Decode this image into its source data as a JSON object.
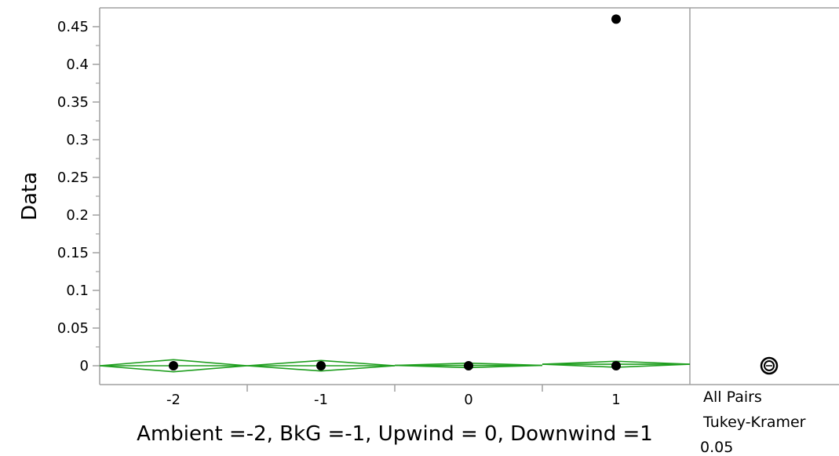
{
  "chart_data": {
    "type": "scatter",
    "title": "",
    "ylabel": "Data",
    "xlabel": "Ambient =-2, BkG =-1, Upwind = 0, Downwind =1",
    "ylim": [
      0,
      0.47
    ],
    "yticks": [
      0,
      0.05,
      0.1,
      0.15,
      0.2,
      0.25,
      0.3,
      0.35,
      0.4,
      0.45
    ],
    "ytick_labels": [
      "0",
      "0.05",
      "0.1",
      "0.15",
      "0.2",
      "0.25",
      "0.3",
      "0.35",
      "0.4",
      "0.45"
    ],
    "categories": [
      "-2",
      "-1",
      "0",
      "1"
    ],
    "points": [
      {
        "category": "-2",
        "y": 0
      },
      {
        "category": "-1",
        "y": 0
      },
      {
        "category": "0",
        "y": 0
      },
      {
        "category": "1",
        "y": 0
      },
      {
        "category": "1",
        "y": 0.46
      }
    ],
    "means_diamonds": [
      {
        "category": "-2",
        "mean": 0,
        "half_width": 0.008
      },
      {
        "category": "-1",
        "mean": 0,
        "half_width": 0.007
      },
      {
        "category": "0",
        "mean": 0.0005,
        "half_width": 0.003
      },
      {
        "category": "1",
        "mean": 0.002,
        "half_width": 0.004
      }
    ],
    "comparison_circles": {
      "labels": [
        "All Pairs",
        "Tukey-Kramer",
        "0.05"
      ],
      "center": 0
    },
    "colors": {
      "points": "#000000",
      "diamonds": "#1e9e1e",
      "frame": "#a0a0a0"
    }
  }
}
